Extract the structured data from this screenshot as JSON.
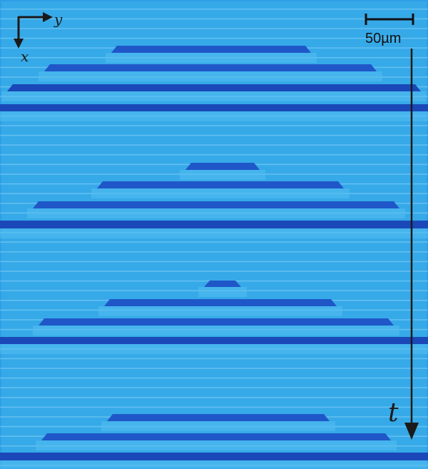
{
  "figure": {
    "axis_x_label": "x",
    "axis_y_label": "y",
    "time_label": "t",
    "scale_bar_label": "50µm"
  },
  "colors": {
    "background_channel": "#36a9e8",
    "border_blue": "#2e9ee6",
    "dark_stripe": "#1f57c8",
    "dark_stripe_strong": "#1a48b8",
    "light_line": "#87d2f5",
    "glow_band": "#54bef0",
    "arrow": "#1a1a1a"
  }
}
